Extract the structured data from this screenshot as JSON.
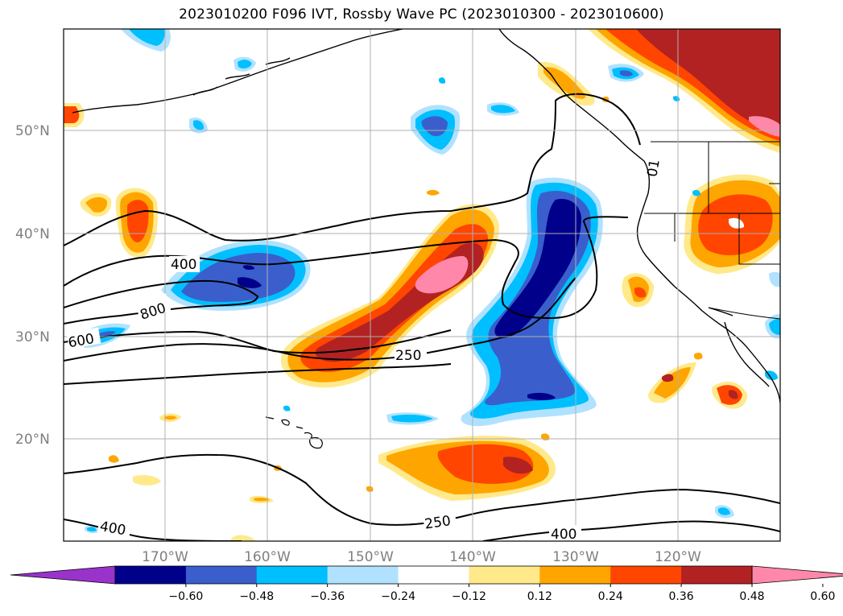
{
  "title": "2023010200 F096 IVT, Rossby Wave PC (2023010300 - 2023010600)",
  "map": {
    "lat_labels": [
      "50°N",
      "40°N",
      "30°N",
      "20°N"
    ],
    "lon_labels": [
      "170°W",
      "160°W",
      "150°W",
      "140°W",
      "130°W",
      "120°W"
    ],
    "grid": true
  },
  "contour_labels": [
    "400",
    "800",
    "600",
    "250",
    "250",
    "400",
    "400",
    "01"
  ],
  "colorbar": {
    "ticks": [
      "−0.60",
      "−0.48",
      "−0.36",
      "−0.24",
      "−0.12",
      "0.12",
      "0.24",
      "0.36",
      "0.48",
      "0.60"
    ],
    "colors": [
      "#9933cc",
      "#00008b",
      "#3a5fcd",
      "#00bfff",
      "#b0e2ff",
      "#ffffff",
      "#ffe98a",
      "#ffa500",
      "#ff4500",
      "#b22222",
      "#ff88aa"
    ],
    "extend": "both"
  }
}
